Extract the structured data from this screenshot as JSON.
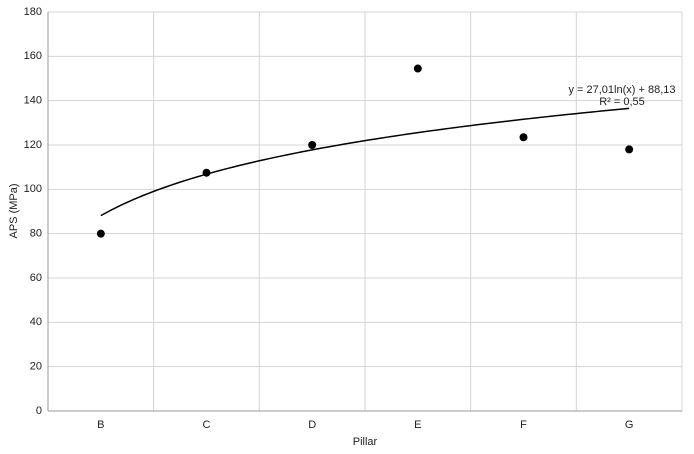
{
  "chart_data": {
    "type": "scatter",
    "x_label": "Pillar",
    "y_label": "APS (MPa)",
    "categories": [
      "B",
      "C",
      "D",
      "E",
      "F",
      "G"
    ],
    "values": [
      80,
      107.5,
      120,
      154.5,
      123.5,
      118
    ],
    "color": "#000000",
    "ylim": [
      0,
      180
    ],
    "yticks": [
      0,
      20,
      40,
      60,
      80,
      100,
      120,
      140,
      160,
      180
    ],
    "grid": true,
    "trendline": {
      "equation": "y = 27,01ln(x) + 88,13",
      "r2_label": "R² = 0,55",
      "coef": 27.01,
      "intercept": 88.13
    }
  }
}
